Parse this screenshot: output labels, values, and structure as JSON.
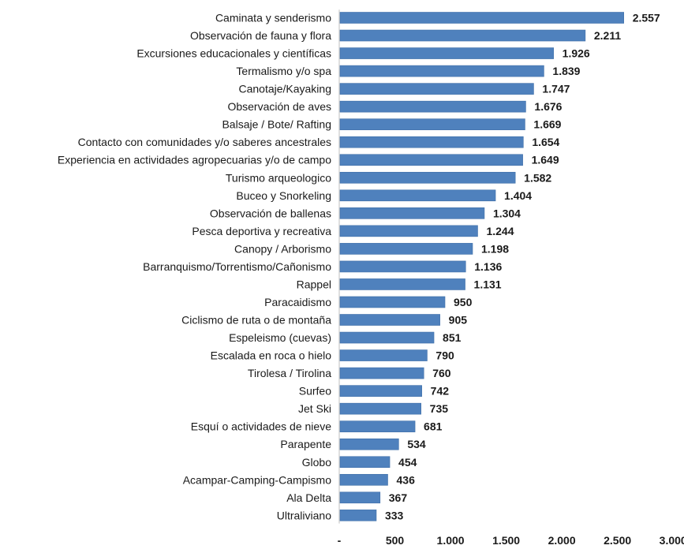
{
  "chart_data": {
    "type": "bar",
    "orientation": "horizontal",
    "categories": [
      "Caminata y senderismo",
      "Observación de fauna y flora",
      "Excursiones educacionales  y científicas",
      "Termalismo y/o spa",
      "Canotaje/Kayaking",
      "Observación de aves",
      "Balsaje / Bote/ Rafting",
      "Contacto con comunidades y/o saberes ancestrales",
      "Experiencia en actividades agropecuarias y/o de campo",
      "Turismo arqueologico",
      "Buceo y Snorkeling",
      "Observación de ballenas",
      "Pesca deportiva y recreativa",
      "Canopy / Arborismo",
      "Barranquismo/Torrentismo/Cañonismo",
      "Rappel",
      "Paracaidismo",
      "Ciclismo de ruta o de montaña",
      "Espeleismo (cuevas)",
      "Escalada en roca o hielo",
      "Tirolesa / Tirolina",
      "Surfeo",
      "Jet Ski",
      "Esquí o actividades de nieve",
      "Parapente",
      "Globo",
      "Acampar-Camping-Campismo",
      "Ala Delta",
      "Ultraliviano"
    ],
    "values": [
      2557,
      2211,
      1926,
      1839,
      1747,
      1676,
      1669,
      1654,
      1649,
      1582,
      1404,
      1304,
      1244,
      1198,
      1136,
      1131,
      950,
      905,
      851,
      790,
      760,
      742,
      735,
      681,
      534,
      454,
      436,
      367,
      333
    ],
    "value_labels": [
      "2.557",
      "2.211",
      "1.926",
      "1.839",
      "1.747",
      "1.676",
      "1.669",
      "1.654",
      "1.649",
      "1.582",
      "1.404",
      "1.304",
      "1.244",
      "1.198",
      "1.136",
      "1.131",
      "950",
      "905",
      "851",
      "790",
      "760",
      "742",
      "735",
      "681",
      "534",
      "454",
      "436",
      "367",
      "333"
    ],
    "x_ticks": [
      0,
      500,
      1000,
      1500,
      2000,
      2500,
      3000
    ],
    "x_tick_labels": [
      "-",
      "500",
      "1.000",
      "1.500",
      "2.000",
      "2.500",
      "3.000"
    ],
    "xlim": [
      0,
      3000
    ],
    "title": "",
    "xlabel": "",
    "ylabel": "",
    "grid": false,
    "legend": "none",
    "bar_color": "#4f81bd",
    "bar_edge_color": "#3f6fa8"
  }
}
